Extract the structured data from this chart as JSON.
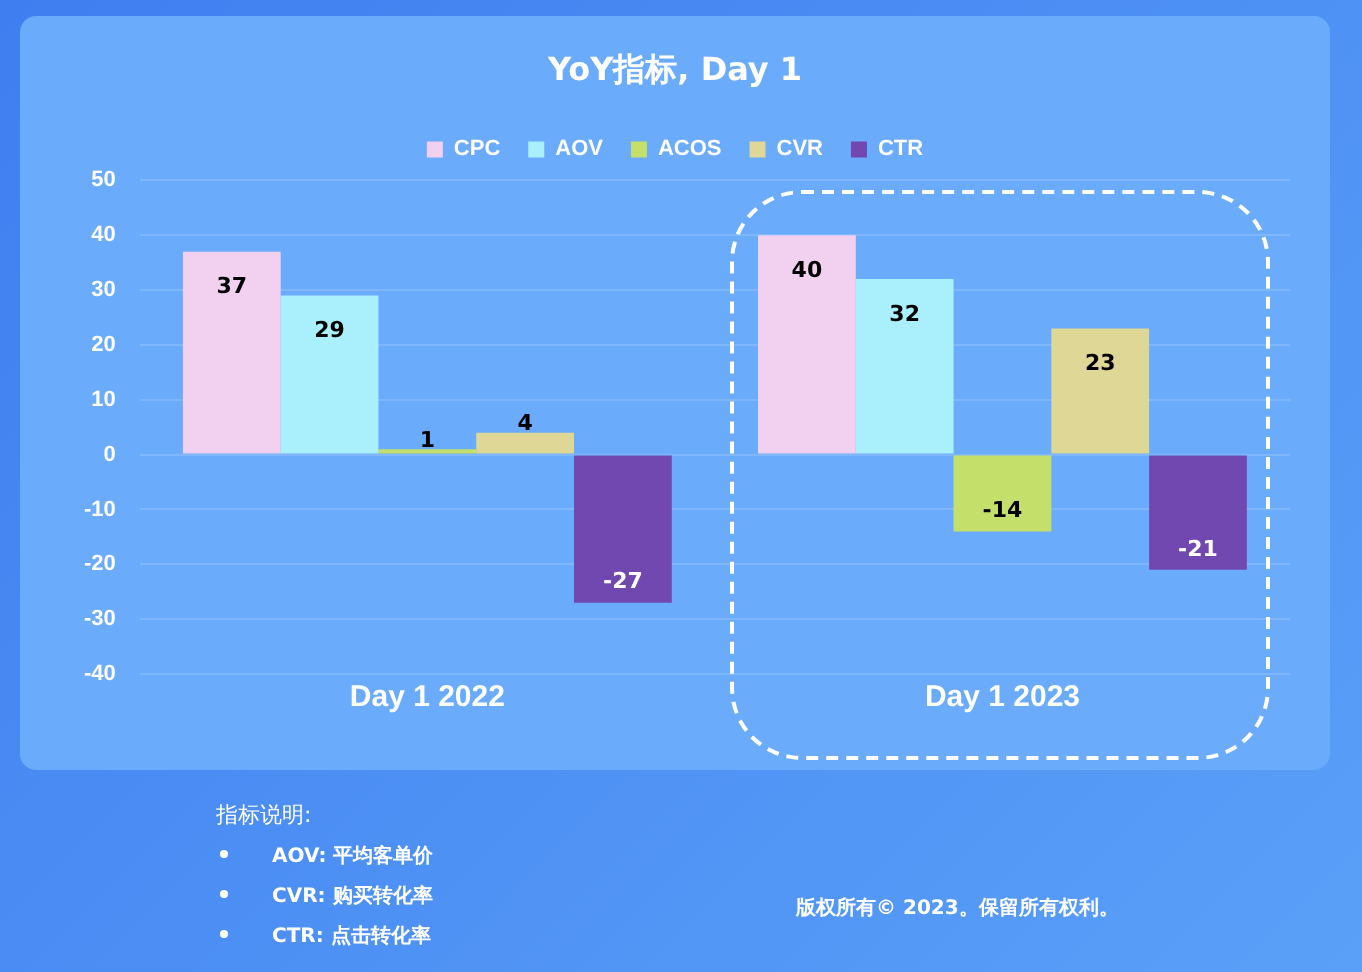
{
  "chart_data": {
    "type": "bar",
    "title": "YoY指标, Day 1",
    "categories": [
      "Day 1 2022",
      "Day 1 2023"
    ],
    "series": [
      {
        "name": "CPC",
        "color": "#f2d1f0",
        "values": [
          37,
          40
        ]
      },
      {
        "name": "AOV",
        "color": "#aaf0fc",
        "values": [
          29,
          32
        ]
      },
      {
        "name": "ACOS",
        "color": "#c5e06a",
        "values": [
          1,
          -14
        ]
      },
      {
        "name": "CVR",
        "color": "#ded796",
        "values": [
          4,
          23
        ]
      },
      {
        "name": "CTR",
        "color": "#7048b0",
        "values": [
          -27,
          -21
        ]
      }
    ],
    "ylim": [
      -40,
      50
    ],
    "yticks": [
      -40,
      -30,
      -20,
      -10,
      0,
      10,
      20,
      30,
      40,
      50
    ],
    "grid": "y",
    "legend": "top",
    "data_labels": true,
    "annotations": [
      "指标说明:",
      "AOV: 平均客单价",
      "CVR: 购买转化率",
      "CTR: 点击转化率",
      "版权所有© 2023。保留所有权利。"
    ]
  }
}
